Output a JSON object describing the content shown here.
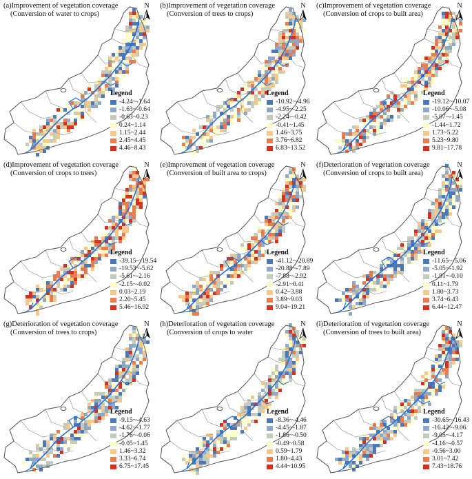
{
  "legend_title": "Legend",
  "legend_colors": [
    "#4a78b8",
    "#8fa8c8",
    "#c3cbbd",
    "#fdfdc8",
    "#f8c88a",
    "#ec7c4e",
    "#d7301f"
  ],
  "panels": [
    {
      "title_line1": "(a)Improvement of vegetation coverage",
      "title_line2": "(Conversion of water to crops)",
      "north": "N",
      "legend": [
        "-4.24~-1.64",
        "-1.63~-0.64",
        "-0.63~0.23",
        "0.24~1.14",
        "1.15~2.44",
        "2.45~4.45",
        "4.46~8.43"
      ]
    },
    {
      "title_line1": "(b)Improvement of vegetation coverage",
      "title_line2": "(Conversion of trees to crops)",
      "north": "N",
      "legend": [
        "-10.92~-4.96",
        "-4.95~-2.25",
        "-2.24~-0.42",
        "-0.41~1.45",
        "1.46~3.75",
        "3.76~6.82",
        "6.83~13.52"
      ]
    },
    {
      "title_line1": "(c)Improvement of vegetation coverage",
      "title_line2": "(Conversion of crops to built area)",
      "north": "N",
      "legend": [
        "-19.12~-10.07",
        "-10.06~-5.08",
        "-5.07~-1.45",
        "-1.44~1.72",
        "1.73~5.22",
        "5.23~9.80",
        "9.81~17.78"
      ]
    },
    {
      "title_line1": "(d)Improvement of vegetation coverage",
      "title_line2": "(Conversion of crops to trees)",
      "north": "N",
      "legend": [
        "-39.15~-19.54",
        "-19.53~-5.62",
        "-5.61~-2.16",
        "-2.15~-0.02",
        "0.03~2.19",
        "2.20~5.45",
        "5.46~16.92"
      ]
    },
    {
      "title_line1": "(e)Improvement of vegetation coverage",
      "title_line2": "(Conversion of built area to crops)",
      "north": "N",
      "legend": [
        "-41.12~-20.89",
        "-20.88~-7.89",
        "-7.88~-2.92",
        "-2.91~0.41",
        "0.42~3.88",
        "3.89~9.03",
        "9.04~19.21"
      ]
    },
    {
      "title_line1": "(f)Deterioration of vegetation coverage",
      "title_line2": "(Conversion of crops to built area)",
      "north": "N",
      "legend": [
        "-11.65~-5.06",
        "-5.05~-1.92",
        "-1.91~-0.10",
        "0.11~1.79",
        "1.80~3.73",
        "3.74~6.43",
        "6.44~12.47"
      ]
    },
    {
      "title_line1": "(g)Deterioration of vegetation coverage",
      "title_line2": "(Conversion of trees to crops)",
      "north": "N",
      "legend": [
        "-9.15~-4.63",
        "-4.62~-1.77",
        "-1.76~-0.06",
        "-0.05~1.45",
        "1.46~3.32",
        "3.33~6.74",
        "6.75~17.45"
      ]
    },
    {
      "title_line1": "(h)Deterioration of vegetation coverage",
      "title_line2": "(Conversion of crops to water",
      "north": "N",
      "legend": [
        "-8.36~-4.46",
        "-4.45~-1.87",
        "-1.86~-0.50",
        "-0.49~0.58",
        "0.59~1.79",
        "1.80~4.43",
        "4.44~10.95"
      ]
    },
    {
      "title_line1": "(i)Deterioration of vegetation coverage",
      "title_line2": "(Conversion of trees to built area)",
      "north": "N",
      "legend": [
        "-30.65~-16.43",
        "-16.42~-9.06",
        "-9.05~-4.17",
        "-4.16~-0.57",
        "-0.56~3.00",
        "3.01~7.42",
        "7.43~18.76"
      ]
    }
  ]
}
